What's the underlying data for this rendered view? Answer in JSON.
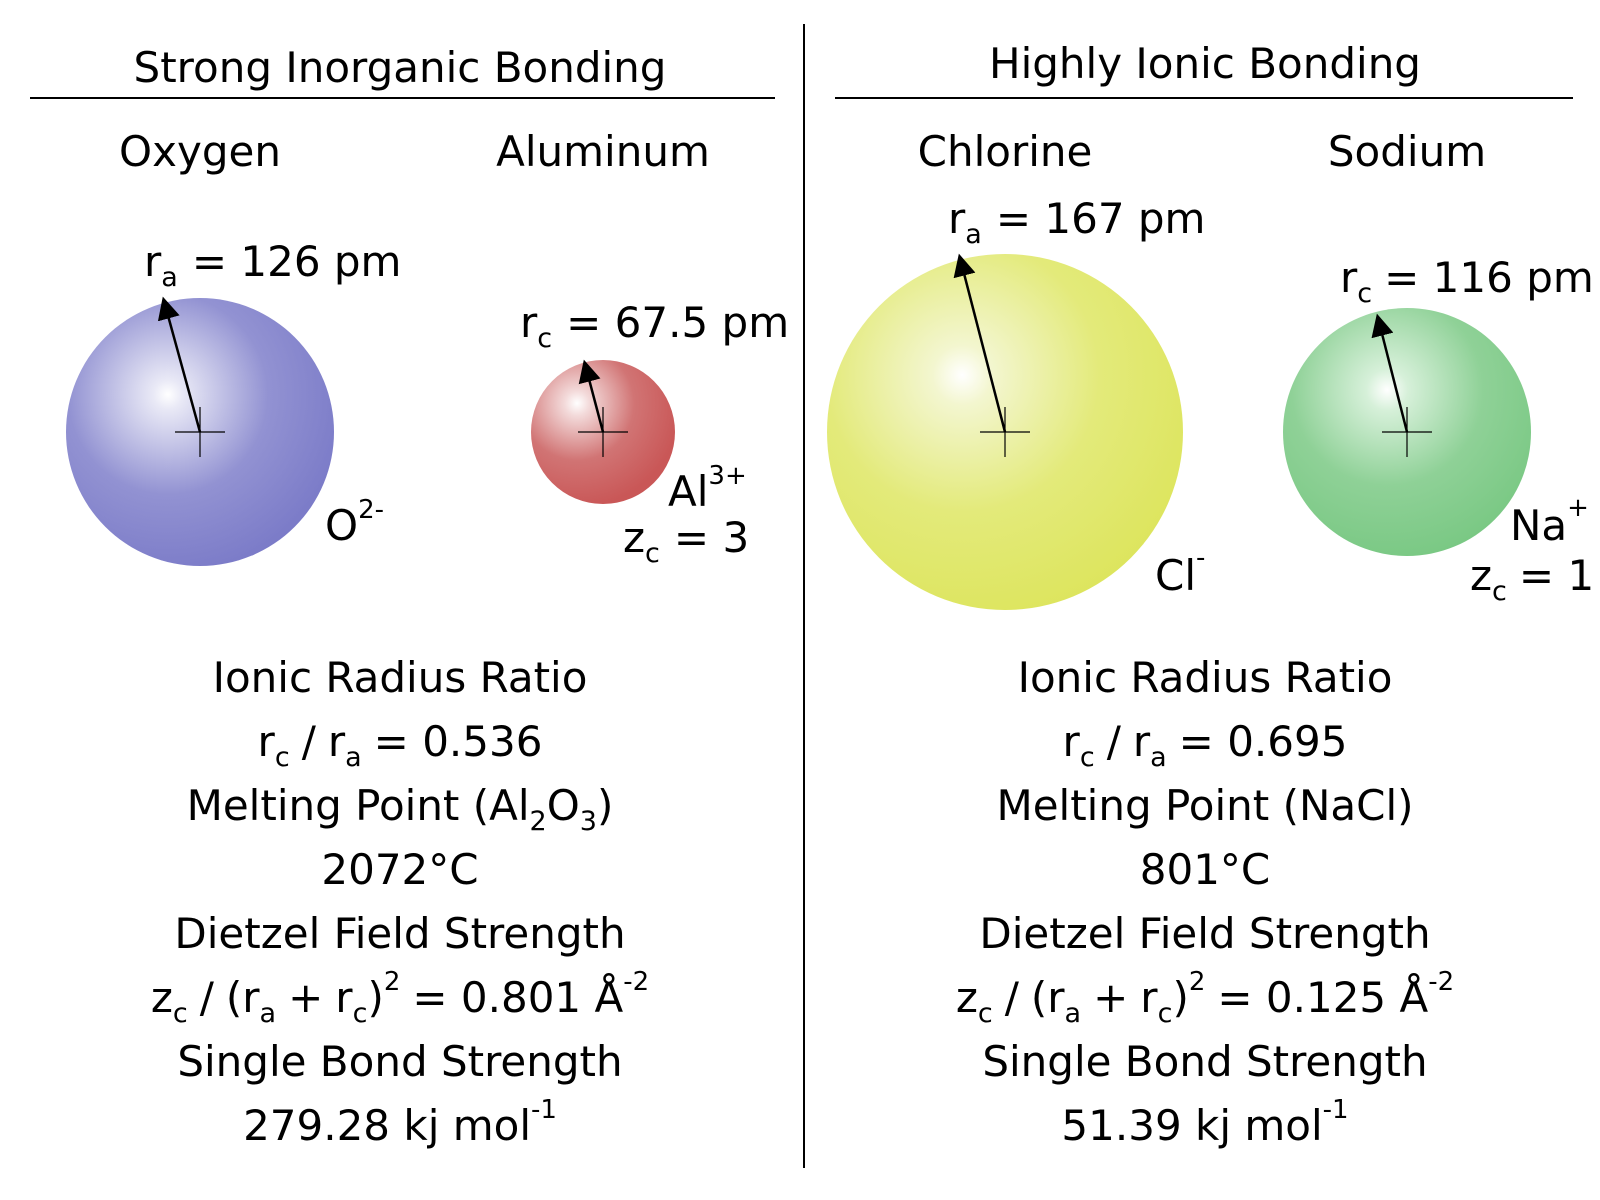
{
  "colors": {
    "oxygen": "#7b7bc8",
    "aluminum": "#c95757",
    "chlorine": "#dde55e",
    "sodium": "#79c883",
    "highlight": "#ffffff",
    "ink": "#000000"
  },
  "left": {
    "heading": "Strong Inorganic Bonding",
    "anion": {
      "element": "Oxygen",
      "radius_symbol": "r",
      "radius_sub": "a",
      "radius_value": "= 126 pm",
      "ion_symbol": "O",
      "ion_charge": "2-"
    },
    "cation": {
      "element": "Aluminum",
      "radius_symbol": "r",
      "radius_sub": "c",
      "radius_value": "= 67.5 pm",
      "ion_symbol": "Al",
      "ion_charge": "3+",
      "z_symbol": "z",
      "z_sub": "c",
      "z_value": "= 3"
    },
    "props": {
      "ratio_title": "Ionic Radius Ratio",
      "ratio_eq": "= 0.536",
      "mp_title_pre": "Melting Point (Al",
      "mp_sub1": "2",
      "mp_mid": "O",
      "mp_sub2": "3",
      "mp_post": ")",
      "mp_value": "2072°C",
      "dietzel_title": "Dietzel Field Strength",
      "dietzel_value": "= 0.801 Å",
      "dietzel_exp": "-2",
      "bond_title": "Single Bond Strength",
      "bond_value": "279.28 kj mol",
      "bond_exp": "-1"
    }
  },
  "right": {
    "heading": "Highly Ionic Bonding",
    "anion": {
      "element": "Chlorine",
      "radius_symbol": "r",
      "radius_sub": "a",
      "radius_value": "= 167 pm",
      "ion_symbol": "Cl",
      "ion_charge": "-"
    },
    "cation": {
      "element": "Sodium",
      "radius_symbol": "r",
      "radius_sub": "c",
      "radius_value": "= 116 pm",
      "ion_symbol": "Na",
      "ion_charge": "+",
      "z_symbol": "z",
      "z_sub": "c",
      "z_value": "= 1"
    },
    "props": {
      "ratio_title": "Ionic Radius Ratio",
      "ratio_eq": "= 0.695",
      "mp_title": "Melting Point (NaCl)",
      "mp_value": "801°C",
      "dietzel_title": "Dietzel Field Strength",
      "dietzel_value": "= 0.125 Å",
      "dietzel_exp": "-2",
      "bond_title": "Single Bond Strength",
      "bond_value": "51.39 kj mol",
      "bond_exp": "-1"
    }
  },
  "formula_parts": {
    "r": "r",
    "z": "z",
    "sub_a": "a",
    "sub_c": "c",
    "slash": "/",
    "open_paren": "(",
    "plus": "+",
    "close_paren": ")",
    "square": "2"
  }
}
